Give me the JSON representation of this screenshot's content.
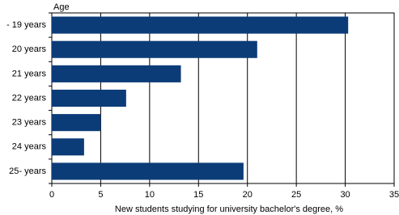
{
  "chart_data": {
    "type": "bar",
    "orientation": "horizontal",
    "y_label": "Age",
    "x_label": "New students studying for university bachelor's degree, %",
    "categories": [
      "- 19 years",
      "20 years",
      "21 years",
      "22 years",
      "23 years",
      "24 years",
      "25- years"
    ],
    "values": [
      30.3,
      21.0,
      13.2,
      7.6,
      5.0,
      3.3,
      19.6
    ],
    "color": "#0c3c78",
    "xlim": [
      0,
      35
    ],
    "xticks": [
      0,
      5,
      10,
      15,
      20,
      25,
      30,
      35
    ],
    "grid": true
  }
}
